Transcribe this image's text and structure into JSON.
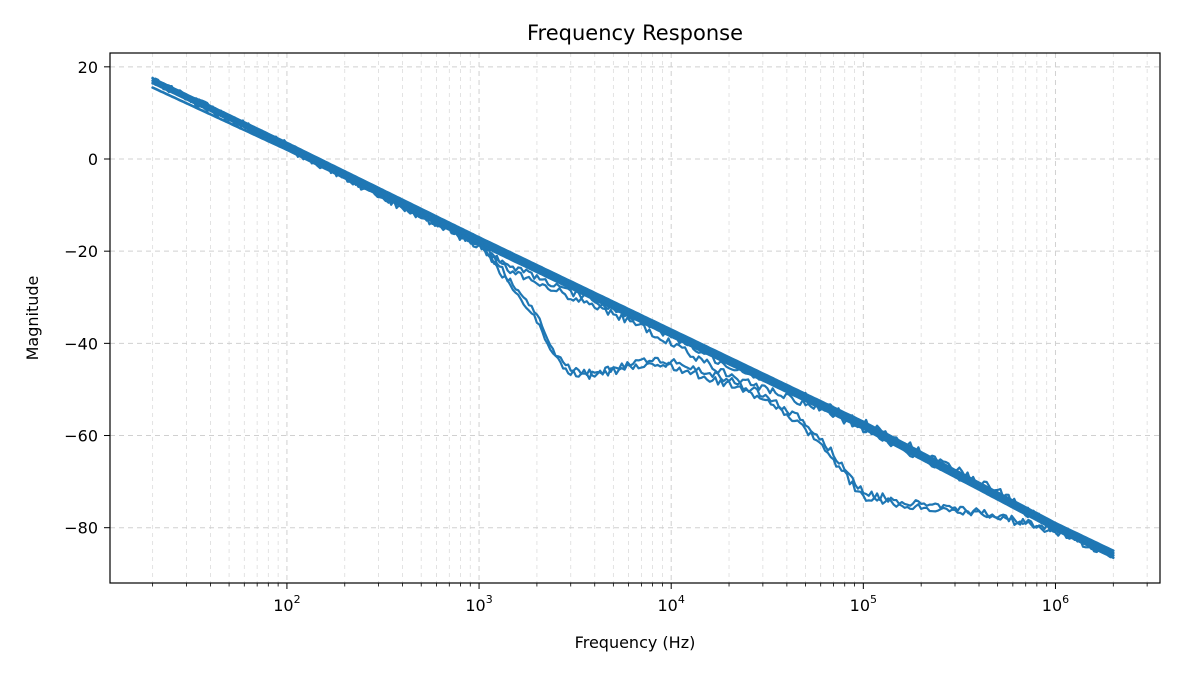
{
  "chart_data": {
    "type": "line",
    "title": "Frequency Response",
    "xlabel": "Frequency (Hz)",
    "ylabel": "Magnitude",
    "xscale": "log",
    "xlim": [
      12,
      3500000
    ],
    "ylim": [
      -92,
      23
    ],
    "x_ticks": [
      100,
      1000,
      10000,
      100000,
      1000000
    ],
    "x_tick_labels": [
      {
        "base": "10",
        "exp": "2"
      },
      {
        "base": "10",
        "exp": "3"
      },
      {
        "base": "10",
        "exp": "4"
      },
      {
        "base": "10",
        "exp": "5"
      },
      {
        "base": "10",
        "exp": "6"
      }
    ],
    "y_ticks": [
      20,
      0,
      -20,
      -40,
      -60,
      -80
    ],
    "y_tick_labels": [
      "20",
      "0",
      "−20",
      "−40",
      "−60",
      "−80"
    ],
    "grid": true,
    "color": "#1f77b4",
    "series": [
      {
        "x": [
          20,
          100,
          1000,
          10000,
          100000,
          1000000,
          2000000
        ],
        "y": [
          17.5,
          3.5,
          -17.0,
          -37.0,
          -57.0,
          -79.0,
          -85.0
        ]
      },
      {
        "x": [
          20,
          100,
          1000,
          10000,
          100000,
          1000000,
          2000000
        ],
        "y": [
          17.0,
          3.0,
          -17.5,
          -37.5,
          -57.5,
          -79.5,
          -85.5
        ]
      },
      {
        "x": [
          20,
          100,
          1000,
          10000,
          100000,
          1000000,
          2000000
        ],
        "y": [
          16.5,
          2.5,
          -18.0,
          -38.0,
          -58.0,
          -80.0,
          -86.0
        ]
      },
      {
        "x": [
          20,
          100,
          1000,
          10000,
          100000,
          1000000,
          2000000
        ],
        "y": [
          15.5,
          2.0,
          -18.5,
          -38.5,
          -58.5,
          -80.5,
          -86.5
        ]
      },
      {
        "x": [
          20,
          50,
          100,
          200,
          500,
          1000,
          1200,
          1500,
          2000,
          3000,
          5000,
          7000,
          10000,
          20000,
          50000,
          100000,
          200000,
          500000,
          1000000,
          2000000
        ],
        "y": [
          17.0,
          9.0,
          2.8,
          -3.5,
          -12.0,
          -18.0,
          -21.0,
          -23.5,
          -25.5,
          -29.0,
          -32.5,
          -35.5,
          -38.5,
          -45.0,
          -51.5,
          -57.0,
          -63.5,
          -72.0,
          -80.0,
          -85.5
        ]
      },
      {
        "x": [
          20,
          50,
          100,
          200,
          500,
          1000,
          1200,
          1500,
          2000,
          3000,
          5000,
          7000,
          10000,
          20000,
          50000,
          100000,
          200000,
          500000,
          1000000,
          2000000
        ],
        "y": [
          16.8,
          8.5,
          2.5,
          -4.0,
          -12.5,
          -18.5,
          -22.0,
          -24.5,
          -26.5,
          -30.0,
          -33.5,
          -36.5,
          -40.0,
          -47.0,
          -53.0,
          -58.5,
          -65.0,
          -73.0,
          -80.5,
          -86.0
        ]
      },
      {
        "x": [
          20,
          50,
          100,
          200,
          500,
          1000,
          1200,
          1500,
          2000,
          2500,
          3000,
          4000,
          5000,
          7000,
          10000,
          20000,
          30000,
          50000,
          70000,
          100000,
          200000,
          300000,
          500000,
          700000,
          1000000,
          2000000
        ],
        "y": [
          17.2,
          9.2,
          3.0,
          -3.8,
          -12.2,
          -18.5,
          -21.5,
          -27.5,
          -34.0,
          -42.0,
          -45.5,
          -46.5,
          -45.5,
          -43.5,
          -44.0,
          -48.0,
          -51.0,
          -57.0,
          -64.0,
          -72.5,
          -75.0,
          -75.5,
          -77.5,
          -78.5,
          -80.5,
          -86.0
        ]
      },
      {
        "x": [
          20,
          50,
          100,
          200,
          500,
          1000,
          1200,
          1500,
          2000,
          2500,
          3000,
          4000,
          5000,
          7000,
          10000,
          20000,
          30000,
          50000,
          70000,
          100000,
          200000,
          300000,
          500000,
          700000,
          1000000,
          2000000
        ],
        "y": [
          17.0,
          8.8,
          2.7,
          -4.2,
          -12.5,
          -19.0,
          -22.5,
          -28.5,
          -35.0,
          -43.0,
          -46.5,
          -47.0,
          -46.0,
          -44.5,
          -45.0,
          -49.0,
          -52.0,
          -58.5,
          -65.5,
          -73.5,
          -75.5,
          -76.0,
          -78.0,
          -79.0,
          -81.0,
          -86.0
        ]
      }
    ]
  }
}
